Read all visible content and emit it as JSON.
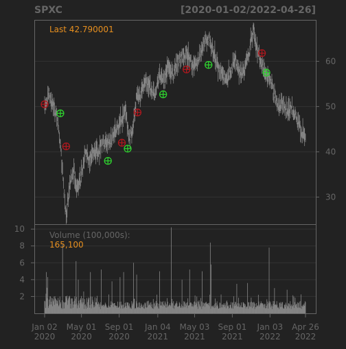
{
  "chart_data": {
    "type": "candlestick",
    "ticker": "SPXC",
    "date_range": "[2020-01-02/2022-04-26]",
    "last_label": "Last 42.790001",
    "price_axis": {
      "ticks": [
        30,
        40,
        50,
        60
      ],
      "ylim": [
        24,
        69
      ],
      "side": "right"
    },
    "volume_panel": {
      "title": "Volume (100,000s):",
      "last_value": "165,100",
      "ticks": [
        2,
        4,
        6,
        8,
        10
      ],
      "ylim": [
        0,
        10.5
      ]
    },
    "x_axis": {
      "labels": [
        {
          "date": "Jan 02",
          "year": "2020",
          "t": 0
        },
        {
          "date": "May 01",
          "year": "2020",
          "t": 82
        },
        {
          "date": "Sep 01",
          "year": "2020",
          "t": 166
        },
        {
          "date": "Jan 04",
          "year": "2021",
          "t": 252
        },
        {
          "date": "May 03",
          "year": "2021",
          "t": 334
        },
        {
          "date": "Sep 01",
          "year": "2021",
          "t": 418
        },
        {
          "date": "Jan 03",
          "year": "2022",
          "t": 502
        },
        {
          "date": "Apr 26",
          "year": "2022",
          "t": 581
        }
      ],
      "n_sessions": 582
    },
    "price_path": [
      {
        "t": 0,
        "v": 50
      },
      {
        "t": 8,
        "v": 53
      },
      {
        "t": 15,
        "v": 51
      },
      {
        "t": 22,
        "v": 49
      },
      {
        "t": 30,
        "v": 46
      },
      {
        "t": 36,
        "v": 41
      },
      {
        "t": 42,
        "v": 32
      },
      {
        "t": 48,
        "v": 26
      },
      {
        "t": 56,
        "v": 32
      },
      {
        "t": 64,
        "v": 36
      },
      {
        "t": 72,
        "v": 32
      },
      {
        "t": 80,
        "v": 34
      },
      {
        "t": 90,
        "v": 40
      },
      {
        "t": 100,
        "v": 38
      },
      {
        "t": 110,
        "v": 40
      },
      {
        "t": 120,
        "v": 40
      },
      {
        "t": 130,
        "v": 42
      },
      {
        "t": 140,
        "v": 42
      },
      {
        "t": 150,
        "v": 43
      },
      {
        "t": 160,
        "v": 45
      },
      {
        "t": 170,
        "v": 47
      },
      {
        "t": 180,
        "v": 49
      },
      {
        "t": 188,
        "v": 43
      },
      {
        "t": 195,
        "v": 44
      },
      {
        "t": 205,
        "v": 52
      },
      {
        "t": 215,
        "v": 53
      },
      {
        "t": 225,
        "v": 56
      },
      {
        "t": 235,
        "v": 54
      },
      {
        "t": 245,
        "v": 53
      },
      {
        "t": 255,
        "v": 57
      },
      {
        "t": 265,
        "v": 55
      },
      {
        "t": 275,
        "v": 59
      },
      {
        "t": 285,
        "v": 57
      },
      {
        "t": 295,
        "v": 60
      },
      {
        "t": 305,
        "v": 61
      },
      {
        "t": 315,
        "v": 62
      },
      {
        "t": 325,
        "v": 60
      },
      {
        "t": 335,
        "v": 59
      },
      {
        "t": 345,
        "v": 61
      },
      {
        "t": 355,
        "v": 64
      },
      {
        "t": 365,
        "v": 65
      },
      {
        "t": 375,
        "v": 62
      },
      {
        "t": 385,
        "v": 59
      },
      {
        "t": 395,
        "v": 57
      },
      {
        "t": 405,
        "v": 56
      },
      {
        "t": 415,
        "v": 58
      },
      {
        "t": 425,
        "v": 60
      },
      {
        "t": 435,
        "v": 57
      },
      {
        "t": 445,
        "v": 58
      },
      {
        "t": 455,
        "v": 62
      },
      {
        "t": 465,
        "v": 67
      },
      {
        "t": 472,
        "v": 63
      },
      {
        "t": 480,
        "v": 60
      },
      {
        "t": 490,
        "v": 58
      },
      {
        "t": 500,
        "v": 56
      },
      {
        "t": 510,
        "v": 53
      },
      {
        "t": 520,
        "v": 50
      },
      {
        "t": 530,
        "v": 51
      },
      {
        "t": 540,
        "v": 49
      },
      {
        "t": 550,
        "v": 50
      },
      {
        "t": 560,
        "v": 48
      },
      {
        "t": 570,
        "v": 45
      },
      {
        "t": 581,
        "v": 43
      }
    ],
    "markers": [
      {
        "t": 0,
        "v": 50.5,
        "kind": "sell"
      },
      {
        "t": 35,
        "v": 48.5,
        "kind": "buy"
      },
      {
        "t": 48,
        "v": 41.2,
        "kind": "sell"
      },
      {
        "t": 141,
        "v": 38,
        "kind": "buy"
      },
      {
        "t": 172,
        "v": 42,
        "kind": "sell"
      },
      {
        "t": 185,
        "v": 40.7,
        "kind": "buy"
      },
      {
        "t": 207,
        "v": 48.7,
        "kind": "sell"
      },
      {
        "t": 264,
        "v": 52.7,
        "kind": "buy"
      },
      {
        "t": 316,
        "v": 58.2,
        "kind": "sell"
      },
      {
        "t": 365,
        "v": 59.2,
        "kind": "buy"
      },
      {
        "t": 484,
        "v": 61.8,
        "kind": "sell"
      },
      {
        "t": 494,
        "v": 57.5,
        "kind": "buy"
      }
    ],
    "volume_spikes": [
      {
        "t": 4,
        "v": 4.9
      },
      {
        "t": 7,
        "v": 4.3
      },
      {
        "t": 40,
        "v": 8.2
      },
      {
        "t": 70,
        "v": 6.2
      },
      {
        "t": 75,
        "v": 4.0
      },
      {
        "t": 102,
        "v": 4.9
      },
      {
        "t": 126,
        "v": 5.2
      },
      {
        "t": 150,
        "v": 3.8
      },
      {
        "t": 168,
        "v": 4.3
      },
      {
        "t": 176,
        "v": 4.9
      },
      {
        "t": 198,
        "v": 6.0
      },
      {
        "t": 205,
        "v": 4.6
      },
      {
        "t": 256,
        "v": 5.0
      },
      {
        "t": 282,
        "v": 10.2
      },
      {
        "t": 306,
        "v": 4.0
      },
      {
        "t": 323,
        "v": 5.2
      },
      {
        "t": 351,
        "v": 5.0
      },
      {
        "t": 369,
        "v": 8.4
      },
      {
        "t": 371,
        "v": 5.8
      },
      {
        "t": 428,
        "v": 3.5
      },
      {
        "t": 452,
        "v": 3.6
      },
      {
        "t": 500,
        "v": 7.8
      },
      {
        "t": 512,
        "v": 3.0
      },
      {
        "t": 540,
        "v": 2.8
      }
    ],
    "colors": {
      "background": "#222222",
      "panel_border": "#666666",
      "grid": "#333333",
      "candles": "#888888",
      "last_price": "#e8901f",
      "buy_marker": "#2fd12f",
      "sell_marker": "#b0181e"
    }
  }
}
